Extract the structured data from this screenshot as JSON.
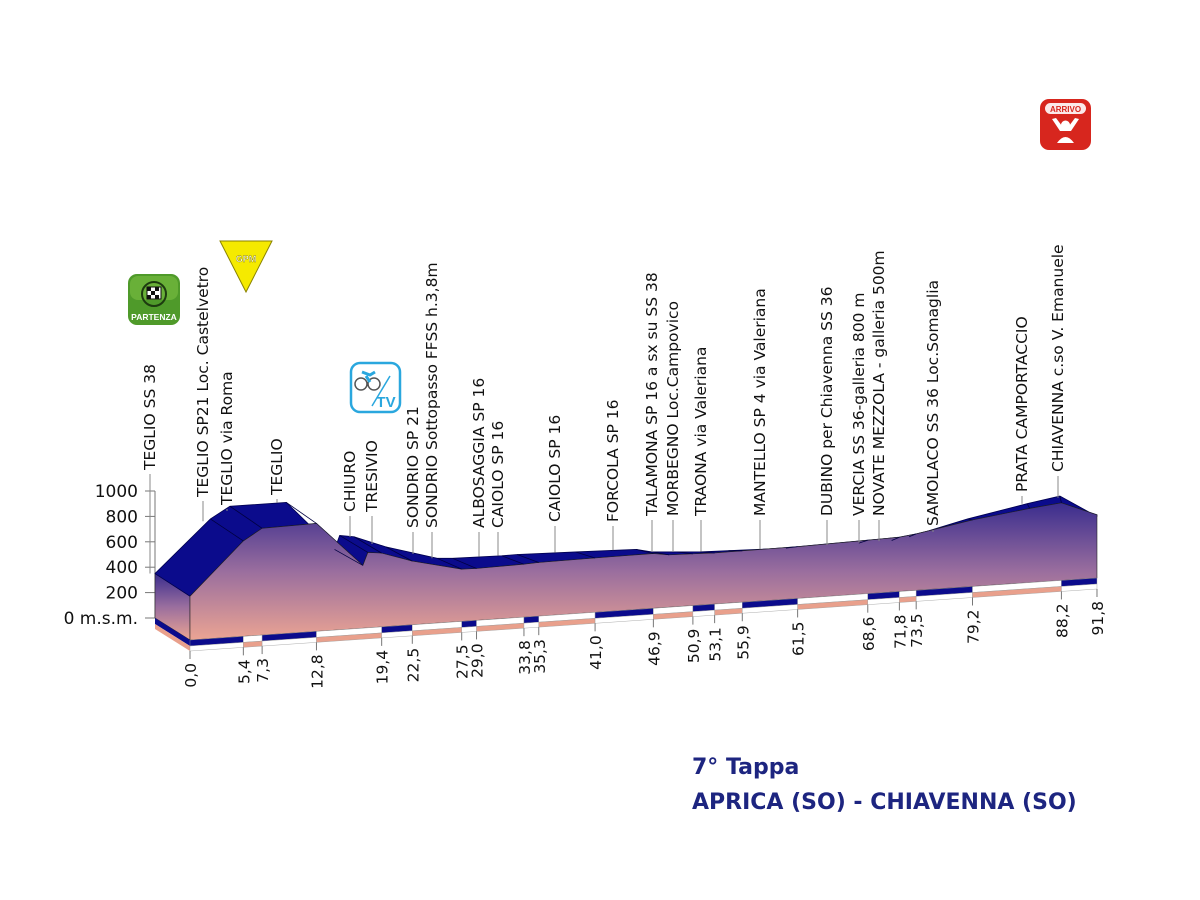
{
  "chart_data": {
    "type": "area",
    "title": "7° Tappa",
    "subtitle": "APRICA (SO) - CHIAVENNA (SO)",
    "xlabel": "",
    "ylabel": "",
    "y_ticks": [
      "0 m.s.m.",
      "200",
      "400",
      "600",
      "800",
      "1000"
    ],
    "ylim": [
      0,
      1000
    ],
    "xlim": [
      0,
      91.8
    ],
    "profile": {
      "km": [
        0,
        5.4,
        7.3,
        12.8,
        17.5,
        18.0,
        19.4,
        22.5,
        27.5,
        29.0,
        33.8,
        35.3,
        41.0,
        46.9,
        48.5,
        50.9,
        53.1,
        55.9,
        61.5,
        68.6,
        71.8,
        73.5,
        79.2,
        85.0,
        88.2,
        91.8
      ],
      "elevation": [
        350,
        780,
        880,
        910,
        540,
        650,
        640,
        560,
        470,
        470,
        490,
        500,
        520,
        540,
        520,
        520,
        520,
        530,
        550,
        590,
        610,
        640,
        780,
        900,
        960,
        800
      ]
    },
    "km_labels": [
      "0,0",
      "5,4",
      "7,3",
      "12,8",
      "19,4",
      "22,5",
      "27,5",
      "29,0",
      "33,8",
      "35,3",
      "41,0",
      "46,9",
      "50,9",
      "53,1",
      "55,9",
      "61,5",
      "68,6",
      "71,8",
      "73,5",
      "79,2",
      "88,2",
      "91,8"
    ],
    "places": [
      "TEGLIO SS 38",
      "TEGLIO SP21 Loc. Castelvetro",
      "TEGLIO via Roma",
      "TEGLIO",
      "CHIURO",
      "TRESIVIO",
      "SONDRIO SP 21",
      "SONDRIO Sottopasso FFSS h.3,8m",
      "ALBOSAGGIA SP 16",
      "CAIOLO SP 16",
      "CAIOLO SP 16",
      "FORCOLA SP 16",
      "TALAMONA SP 16 a sx su SS 38",
      "MORBEGNO Loc.Campovico",
      "TRAONA via Valeriana",
      "MANTELLO SP 4 via Valeriana",
      "DUBINO per Chiavenna SS 36",
      "VERCIA SS 36-galleria 800 m",
      "NOVATE MEZZOLA - galleria 500m",
      "SAMOLACO SS 36 Loc.Somaglia",
      "PRATA CAMPORTACCIO",
      "CHIAVENNA c.so V. Emanuele"
    ],
    "icons": {
      "start": {
        "label": "PARTENZA",
        "icon": "checkered-flag-icon",
        "color": "#4f9a2a"
      },
      "climb": {
        "label": "GPM",
        "icon": "gpm-triangle-icon",
        "color": "#f5ea00"
      },
      "tv": {
        "label": "TV",
        "icon": "tv-cyclist-icon",
        "color": "#2aa7de"
      },
      "finish": {
        "label": "ARRIVO",
        "icon": "finish-arms-icon",
        "color": "#d7261e"
      }
    },
    "colors": {
      "top_face": "#0b0b8c",
      "front_top": "#3a2d8e",
      "front_bottom": "#eba493",
      "salmon": "#e9a08c"
    }
  }
}
